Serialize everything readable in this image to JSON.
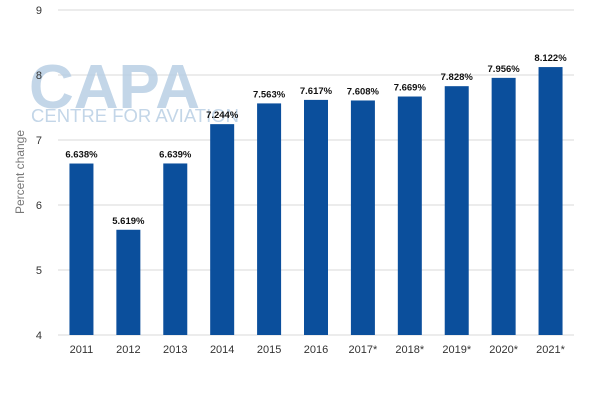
{
  "watermark": {
    "brand": "CAPA",
    "tagline": "CENTRE FOR AVIATION"
  },
  "chart_data": {
    "type": "bar",
    "title": "",
    "xlabel": "",
    "ylabel": "Percent change",
    "ylim": [
      4,
      9
    ],
    "yticks": [
      4,
      5,
      6,
      7,
      8,
      9
    ],
    "grid": true,
    "legend": "none",
    "bar_color": "#0b4f9c",
    "grid_color": "#d9d9d9",
    "categories": [
      "2011",
      "2012",
      "2013",
      "2014",
      "2015",
      "2016",
      "2017*",
      "2018*",
      "2019*",
      "2020*",
      "2021*"
    ],
    "values": [
      6.638,
      5.619,
      6.639,
      7.244,
      7.563,
      7.617,
      7.608,
      7.669,
      7.828,
      7.956,
      8.122
    ],
    "value_labels": [
      "6.638%",
      "5.619%",
      "6.639%",
      "7.244%",
      "7.563%",
      "7.617%",
      "7.608%",
      "7.669%",
      "7.828%",
      "7.956%",
      "8.122%"
    ]
  }
}
